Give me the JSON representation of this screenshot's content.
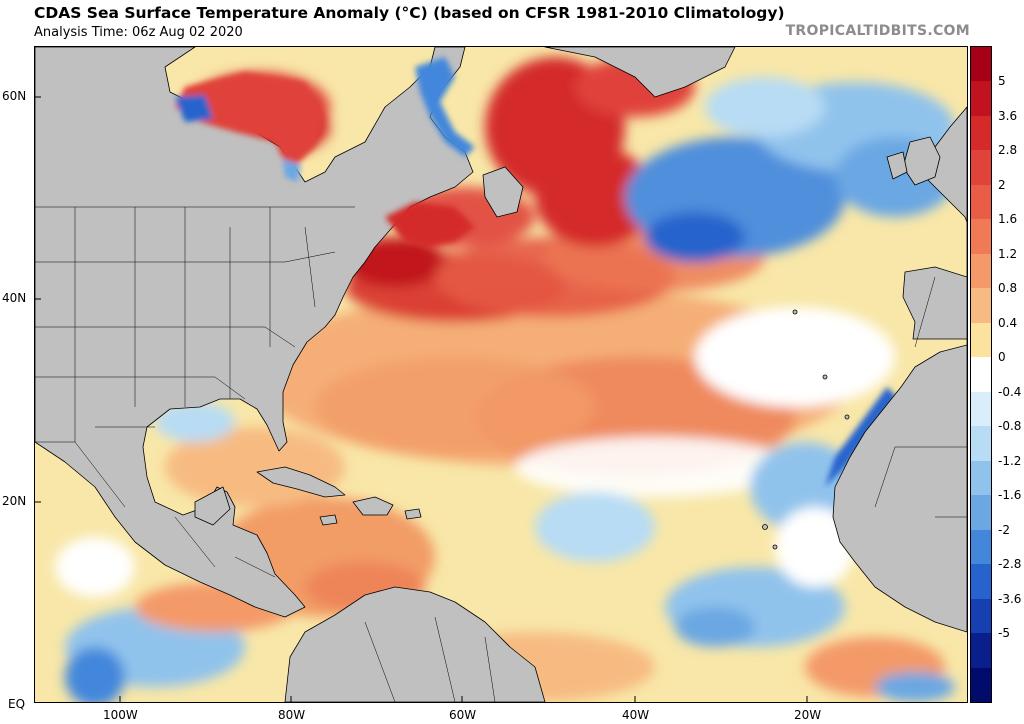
{
  "title": "CDAS Sea Surface Temperature Anomaly (°C) (based on CFSR 1981-2010 Climatology)",
  "subtitle": "Analysis Time: 06z Aug 02 2020",
  "credit": "TROPICALTIDBITS.COM",
  "map": {
    "latitude_labels": [
      "60N",
      "40N",
      "20N",
      "EQ"
    ],
    "longitude_labels": [
      "100W",
      "80W",
      "60W",
      "40W",
      "20W"
    ],
    "land_color": "#c0c0c0",
    "border_color": "#000000"
  },
  "colorbar": {
    "labels": [
      "5",
      "3.6",
      "2.8",
      "2",
      "1.6",
      "1.2",
      "0.8",
      "0.4",
      "0",
      "-0.4",
      "-0.8",
      "-1.2",
      "-1.6",
      "-2",
      "-2.8",
      "-3.6",
      "-5"
    ],
    "colors": [
      "#a50015",
      "#c1121f",
      "#d42a2a",
      "#e0433a",
      "#e95c46",
      "#f07a55",
      "#f49a69",
      "#f7bb82",
      "#fbe29d",
      "#ffffff",
      "#d9eefa",
      "#b7dcf4",
      "#90c3ec",
      "#6aa7e3",
      "#4387db",
      "#2663cc",
      "#1640b0",
      "#0a1f8c",
      "#000b6b"
    ]
  }
}
